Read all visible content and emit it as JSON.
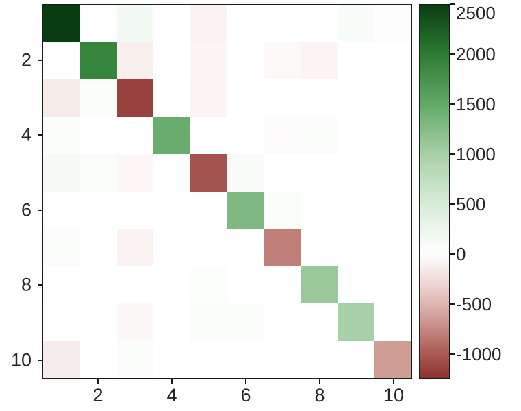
{
  "figure": {
    "background": "#ffffff",
    "axis_color": "#262626",
    "box_color": "#1a1a1a"
  },
  "chart_data": {
    "type": "heatmap",
    "title": "",
    "xlabel": "",
    "ylabel": "",
    "x_range": [
      0.5,
      10.5
    ],
    "y_range": [
      0.5,
      10.5
    ],
    "x_ticks": [
      2,
      4,
      6,
      8,
      10
    ],
    "y_ticks": [
      2,
      4,
      6,
      8,
      10
    ],
    "grid": false,
    "legend": "colorbar-right",
    "matrix": [
      [
        2500,
        15,
        160,
        10,
        -90,
        8,
        5,
        10,
        90,
        40
      ],
      [
        12,
        1900,
        -130,
        8,
        -70,
        5,
        -45,
        -70,
        12,
        6
      ],
      [
        -150,
        70,
        -1150,
        12,
        -80,
        6,
        10,
        5,
        8,
        10
      ],
      [
        45,
        10,
        18,
        1450,
        8,
        5,
        -30,
        45,
        10,
        6
      ],
      [
        120,
        80,
        -60,
        10,
        -1050,
        95,
        12,
        5,
        10,
        12
      ],
      [
        10,
        6,
        10,
        5,
        12,
        1300,
        70,
        5,
        12,
        5
      ],
      [
        80,
        10,
        -90,
        12,
        6,
        10,
        -800,
        12,
        5,
        10
      ],
      [
        25,
        10,
        5,
        12,
        35,
        10,
        5,
        1100,
        12,
        5
      ],
      [
        10,
        5,
        -55,
        10,
        70,
        45,
        5,
        10,
        1000,
        12
      ],
      [
        -140,
        12,
        45,
        5,
        10,
        6,
        12,
        5,
        10,
        -650
      ]
    ],
    "colorbar": {
      "ticks": [
        2500,
        2000,
        1500,
        1000,
        500,
        0,
        -500,
        -1000
      ],
      "max": 2500,
      "min": -1250,
      "positive_stops": [
        [
          0,
          "#ffffff"
        ],
        [
          0.2,
          "#d8ecd8"
        ],
        [
          0.4,
          "#a8d0a8"
        ],
        [
          0.6,
          "#63a867"
        ],
        [
          0.8,
          "#2d7c33"
        ],
        [
          1,
          "#0a3d12"
        ]
      ],
      "negative_stops": [
        [
          0,
          "#ffffff"
        ],
        [
          0.25,
          "#eed5d2"
        ],
        [
          0.5,
          "#d3a19b"
        ],
        [
          0.75,
          "#b26560"
        ],
        [
          1,
          "#8a322e"
        ]
      ]
    }
  }
}
